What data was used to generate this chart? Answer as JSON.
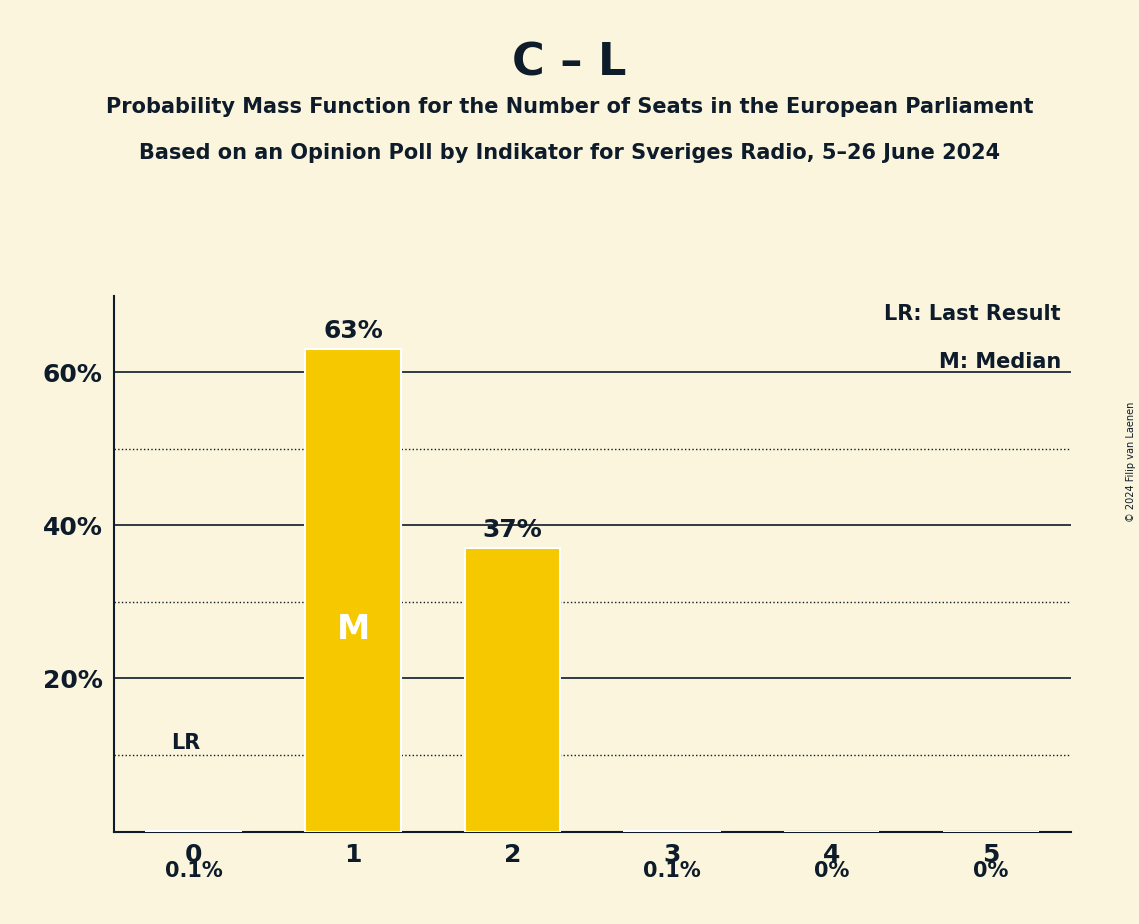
{
  "title": "C – L",
  "subtitle1": "Probability Mass Function for the Number of Seats in the European Parliament",
  "subtitle2": "Based on an Opinion Poll by Indikator for Sveriges Radio, 5–26 June 2024",
  "copyright": "© 2024 Filip van Laenen",
  "categories": [
    0,
    1,
    2,
    3,
    4,
    5
  ],
  "values": [
    0.001,
    0.63,
    0.37,
    0.001,
    0.0,
    0.0
  ],
  "bar_labels": [
    "0.1%",
    "63%",
    "37%",
    "0.1%",
    "0%",
    "0%"
  ],
  "bar_color": "#F5C800",
  "background_color": "#FAF5DC",
  "text_color": "#0D1B2A",
  "median_bar": 1,
  "lr_bar": 0,
  "median_label": "M",
  "lr_label": "LR",
  "legend_lr": "LR: Last Result",
  "legend_m": "M: Median",
  "ylim": [
    0,
    0.7
  ],
  "solid_yticks": [
    0.0,
    0.2,
    0.4,
    0.6
  ],
  "dotted_yticks": [
    0.1,
    0.3,
    0.5
  ],
  "bar_width": 0.6,
  "title_fontsize": 32,
  "subtitle_fontsize": 15,
  "tick_fontsize": 18,
  "label_fontsize_large": 18,
  "label_fontsize_small": 15,
  "median_fontsize": 24,
  "lr_fontsize": 15,
  "legend_fontsize": 15
}
